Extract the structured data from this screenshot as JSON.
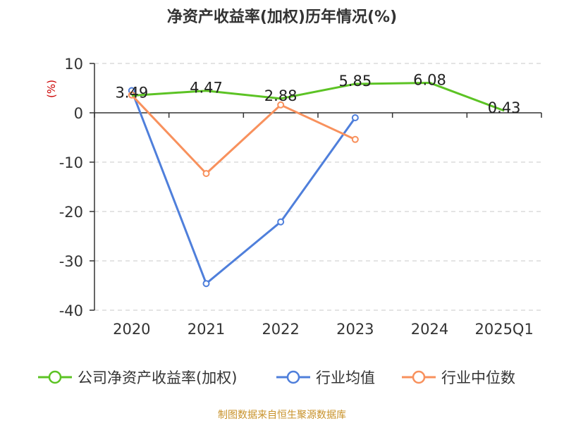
{
  "chart_data": {
    "type": "line",
    "title": "净资产收益率(加权)历年情况(%)",
    "ylabel": "(%)",
    "categories": [
      "2020",
      "2021",
      "2022",
      "2023",
      "2024",
      "2025Q1"
    ],
    "ylim": [
      -40,
      10
    ],
    "yticks": [
      10,
      0,
      -10,
      -20,
      -30,
      -40
    ],
    "grid": "horizontal-dashed",
    "legend_position": "bottom",
    "series": [
      {
        "name": "公司净资产收益率(加权)",
        "color": "#5cc324",
        "values": [
          3.49,
          4.47,
          2.88,
          5.85,
          6.08,
          0.43
        ],
        "labels": [
          "3.49",
          "4.47",
          "2.88",
          "5.85",
          "6.08",
          "0.43"
        ]
      },
      {
        "name": "行业均值",
        "color": "#4f7fdb",
        "values": [
          4.5,
          -34.6,
          -22.1,
          -1.0,
          null,
          null
        ]
      },
      {
        "name": "行业中位数",
        "color": "#f8915d",
        "values": [
          3.6,
          -12.3,
          1.6,
          -5.4,
          null,
          null
        ]
      }
    ]
  },
  "source": "制图数据来自恒生聚源数据库"
}
